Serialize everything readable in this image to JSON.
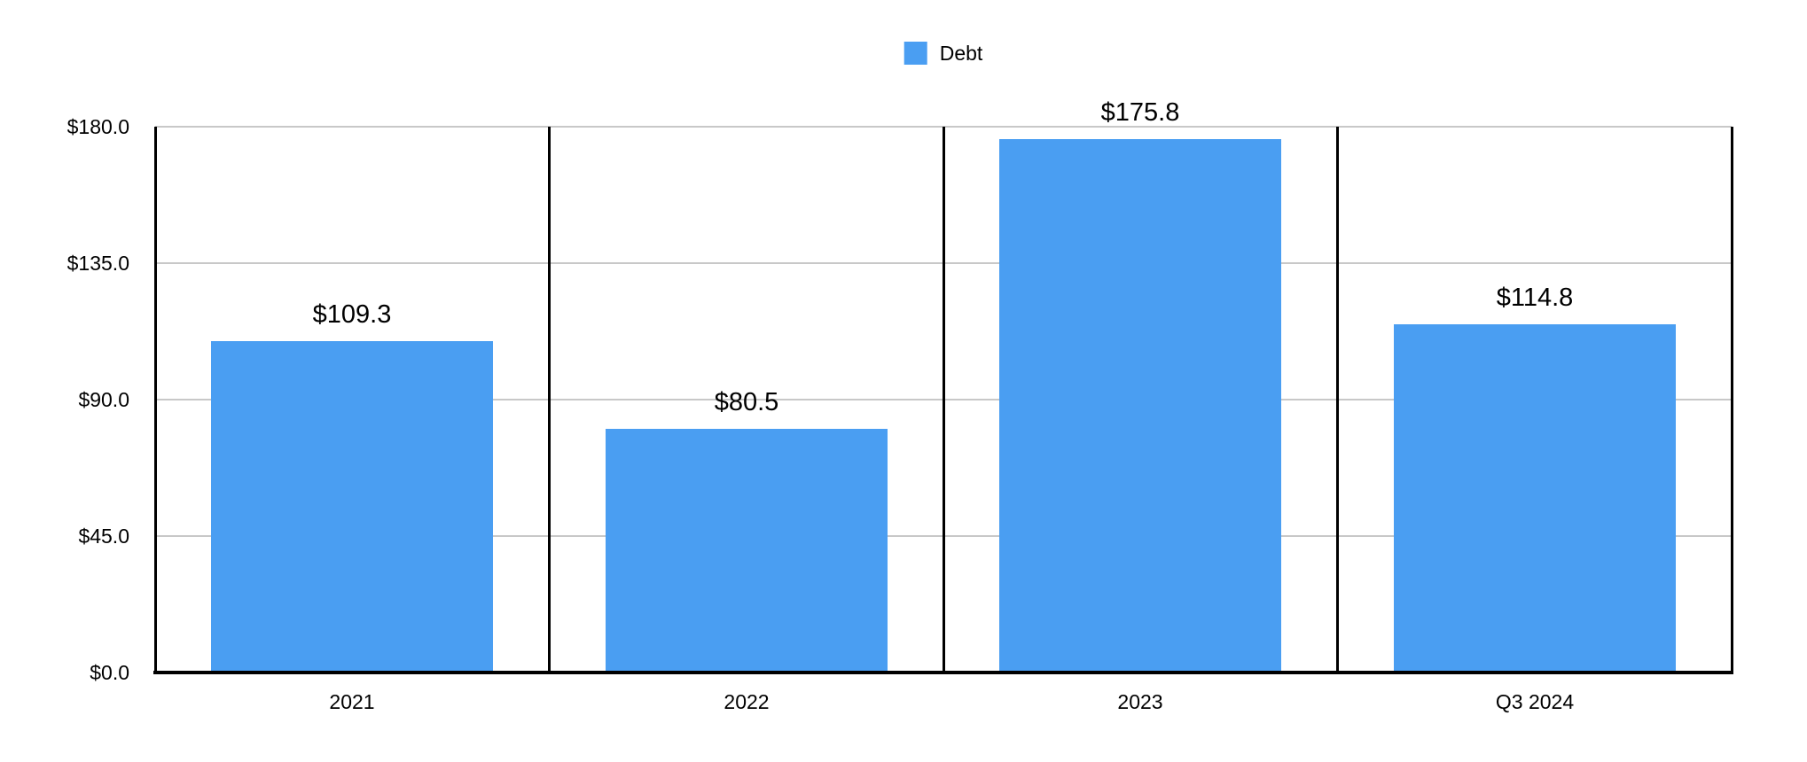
{
  "legend": {
    "items": [
      {
        "label": "Debt",
        "color": "#4A9EF2"
      }
    ]
  },
  "chart_data": {
    "type": "bar",
    "title": "",
    "categories": [
      "2021",
      "2022",
      "2023",
      "Q3 2024"
    ],
    "series": [
      {
        "name": "Debt",
        "values": [
          109.3,
          80.5,
          175.8,
          114.8
        ],
        "color": "#4A9EF2"
      }
    ],
    "data_labels": [
      "$109.3",
      "$80.5",
      "$175.8",
      "$114.8"
    ],
    "y_ticks": [
      {
        "label": "$180.0",
        "value": 180
      },
      {
        "label": "$135.0",
        "value": 135
      },
      {
        "label": "$90.0",
        "value": 90
      },
      {
        "label": "$45.0",
        "value": 45
      },
      {
        "label": "$0.0",
        "value": 0
      }
    ],
    "ylim": [
      0,
      180
    ],
    "xlabel": "",
    "ylabel": "",
    "grid": true,
    "legend_position": "top-center",
    "colors": {
      "bar": "#4A9EF2",
      "gridline": "#c8c8c8",
      "axis": "#000000",
      "text": "#000000",
      "background": "#ffffff"
    }
  }
}
